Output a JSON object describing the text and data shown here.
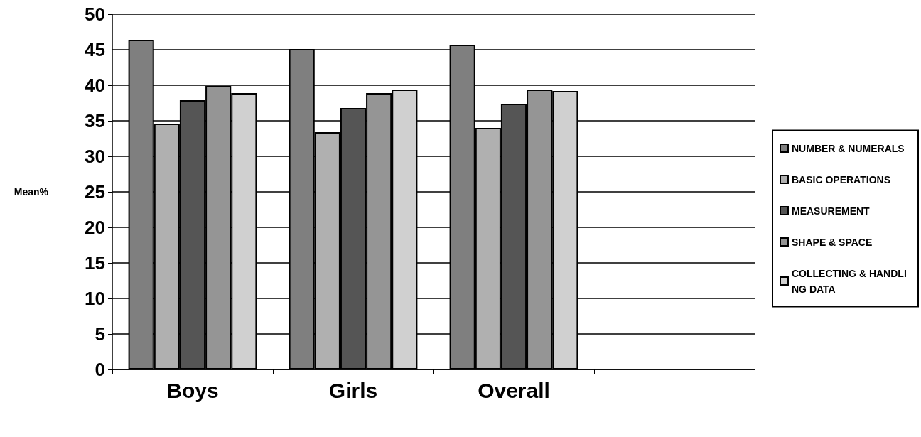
{
  "chart_data": {
    "type": "bar",
    "ylabel": "Mean%",
    "categories": [
      "Boys",
      "Girls",
      "Overall",
      null
    ],
    "series": [
      {
        "name": "NUMBER & NUMERALS",
        "color": "#7f7f7f",
        "values": [
          46.4,
          45.1,
          45.7,
          null
        ]
      },
      {
        "name": "BASIC OPERATIONS",
        "color": "#b0b0b0",
        "values": [
          34.6,
          33.4,
          34.0,
          null
        ]
      },
      {
        "name": "MEASUREMENT",
        "color": "#555555",
        "values": [
          37.9,
          36.8,
          37.4,
          null
        ]
      },
      {
        "name": "SHAPE & SPACE",
        "color": "#959595",
        "values": [
          39.9,
          38.9,
          39.4,
          null
        ]
      },
      {
        "name": "COLLECTING & HANDLING DATA",
        "color": "#d0d0d0",
        "values": [
          38.9,
          39.4,
          39.2,
          null
        ]
      }
    ],
    "ylim": [
      0,
      50
    ],
    "yticks": [
      0,
      5,
      10,
      15,
      20,
      25,
      30,
      35,
      40,
      45,
      50
    ],
    "grid": "y",
    "legend": "right"
  }
}
